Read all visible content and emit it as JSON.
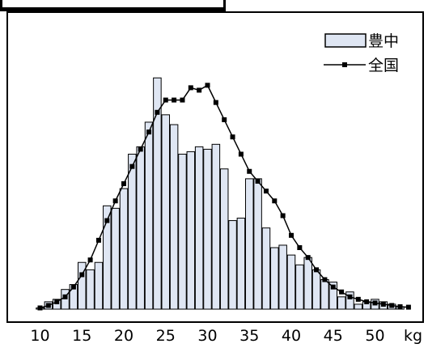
{
  "chart_data": {
    "type": "bar",
    "x_unit_label": "kg",
    "x_ticks": [
      "10",
      "15",
      "20",
      "25",
      "30",
      "35",
      "40",
      "45",
      "50"
    ],
    "xlim": [
      9,
      55
    ],
    "ylim": [
      0,
      100
    ],
    "series": [
      {
        "name": "豊中",
        "type": "bar",
        "x": [
          10,
          11,
          12,
          13,
          14,
          15,
          16,
          17,
          18,
          19,
          20,
          21,
          22,
          23,
          24,
          25,
          26,
          27,
          28,
          29,
          30,
          31,
          32,
          33,
          34,
          35,
          36,
          37,
          38,
          39,
          40,
          41,
          42,
          43,
          44,
          45,
          46,
          47,
          48,
          49,
          50,
          51,
          52,
          53
        ],
        "values": [
          0.5,
          3,
          4,
          8,
          10,
          19,
          16,
          19,
          42,
          41,
          49,
          63,
          66,
          76,
          94,
          79,
          75,
          63,
          64,
          66,
          65,
          67,
          57,
          36,
          37,
          53,
          53,
          33,
          25,
          26,
          22,
          18,
          21,
          16,
          12,
          11,
          5,
          7,
          2,
          3,
          4,
          3,
          2,
          1
        ]
      },
      {
        "name": "全国",
        "type": "line",
        "x": [
          10,
          11,
          12,
          13,
          14,
          15,
          16,
          17,
          18,
          19,
          20,
          21,
          22,
          23,
          24,
          25,
          26,
          27,
          28,
          29,
          30,
          31,
          32,
          33,
          34,
          35,
          36,
          37,
          38,
          39,
          40,
          41,
          42,
          43,
          44,
          45,
          46,
          47,
          48,
          49,
          50,
          51,
          52,
          53,
          54
        ],
        "values": [
          0.5,
          1.5,
          3,
          5,
          9,
          14,
          20,
          28,
          36,
          44,
          51,
          58,
          65,
          72,
          80,
          85,
          85,
          85,
          90,
          89,
          91,
          84,
          77,
          70,
          63,
          56,
          52,
          48,
          44,
          38,
          30,
          25,
          21,
          16,
          12,
          9,
          7,
          5,
          4,
          3,
          2.5,
          2,
          1.5,
          1,
          0.8
        ]
      }
    ],
    "legend_position": "top-right",
    "grid": false
  }
}
